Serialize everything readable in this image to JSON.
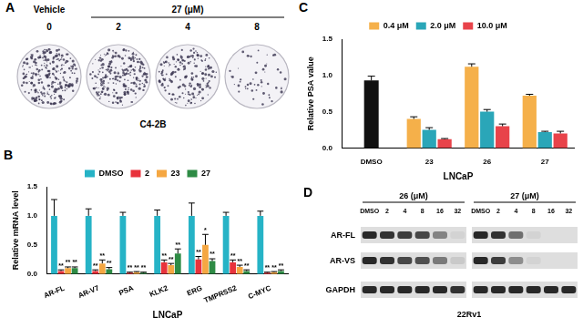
{
  "chart_data": [
    {
      "type": "bar",
      "panel": "B",
      "x_label": "LNCaP",
      "y_label": "Relative mRNA level",
      "categories": [
        "AR-FL",
        "AR-V7",
        "PSA",
        "KLK2",
        "ERG",
        "TMPRSS2",
        "C-MYC"
      ],
      "series": [
        {
          "name": "DMSO",
          "color": "#26b3c6",
          "values": [
            1.0,
            1.0,
            1.0,
            1.0,
            1.0,
            1.0,
            1.0
          ],
          "errors": [
            0.28,
            0.12,
            0.06,
            0.1,
            0.22,
            0.06,
            0.08
          ]
        },
        {
          "name": "2",
          "color": "#e8333c",
          "values": [
            0.05,
            0.05,
            0.02,
            0.2,
            0.25,
            0.2,
            0.02
          ],
          "errors": [
            0.02,
            0.02,
            0.01,
            0.04,
            0.05,
            0.04,
            0.01
          ],
          "stars": [
            "**",
            "**",
            "**",
            "**",
            "**",
            "**",
            "**"
          ]
        },
        {
          "name": "23",
          "color": "#f5a742",
          "values": [
            0.1,
            0.18,
            0.03,
            0.15,
            0.5,
            0.12,
            0.03
          ],
          "errors": [
            0.02,
            0.06,
            0.01,
            0.03,
            0.18,
            0.03,
            0.01
          ],
          "stars": [
            "**",
            "**",
            "**",
            "**",
            "*",
            "**",
            "**"
          ]
        },
        {
          "name": "27",
          "color": "#2e8b45",
          "values": [
            0.1,
            0.08,
            0.02,
            0.35,
            0.22,
            0.05,
            0.05
          ],
          "errors": [
            0.02,
            0.03,
            0.01,
            0.08,
            0.04,
            0.02,
            0.02
          ],
          "stars": [
            "**",
            "**",
            "**",
            "**",
            "**",
            "**",
            "**"
          ]
        }
      ],
      "ylim": [
        0,
        1.5
      ],
      "yticks": [
        {
          "value": 0,
          "label": "0.0"
        },
        0.5,
        {
          "value": 1,
          "label": "1.0"
        },
        1.5
      ],
      "grid": false,
      "legend": "top"
    },
    {
      "type": "bar",
      "panel": "C",
      "x_label": "LNCaP",
      "y_label": "Relative PSA value",
      "categories": [
        "DMSO",
        "23",
        "26",
        "27"
      ],
      "series": [
        {
          "name": "DMSO",
          "color": "#111111",
          "values": [
            0.93,
            null,
            null,
            null
          ],
          "errors": [
            0.06,
            null,
            null,
            null
          ]
        },
        {
          "name": "0.4 μM",
          "color": "#f5b04a",
          "values": [
            null,
            0.4,
            1.12,
            0.72
          ],
          "errors": [
            null,
            0.03,
            0.04,
            0.02
          ]
        },
        {
          "name": "2.0 μM",
          "color": "#2aa6b8",
          "values": [
            null,
            0.25,
            0.5,
            0.22
          ],
          "errors": [
            null,
            0.03,
            0.03,
            0.01
          ]
        },
        {
          "name": "10.0 μM",
          "color": "#e8434a",
          "values": [
            null,
            0.12,
            0.3,
            0.2
          ],
          "errors": [
            null,
            0.01,
            0.03,
            0.03
          ]
        }
      ],
      "ylim": [
        0,
        1.5
      ],
      "yticks": [
        {
          "value": 0,
          "label": "0.0"
        },
        0.5,
        {
          "value": 1,
          "label": "1.0"
        },
        1.5
      ],
      "grid": false,
      "legend": "top"
    }
  ],
  "panel_a": {
    "panel": "A",
    "cell_line": "C4-2B",
    "groups": [
      {
        "title": "Vehicle",
        "wells": [
          "0"
        ]
      },
      {
        "title": "27 (μM)",
        "wells": [
          "2",
          "4",
          "8"
        ]
      }
    ],
    "colonies": [
      260,
      230,
      180,
      50
    ]
  },
  "panel_d": {
    "panel": "D",
    "cell_line": "22Rv1",
    "rows": [
      "AR-FL",
      "AR-VS",
      "GAPDH"
    ],
    "groups": [
      {
        "title": "26 (μM)",
        "lanes": [
          "DMSO",
          "2",
          "4",
          "8",
          "16",
          "32"
        ],
        "intensity": [
          [
            0.9,
            0.85,
            0.8,
            0.75,
            0.45,
            0.05
          ],
          [
            0.9,
            0.85,
            0.75,
            0.7,
            0.5,
            0.1
          ],
          [
            0.9,
            0.9,
            0.9,
            0.9,
            0.9,
            0.85
          ]
        ]
      },
      {
        "title": "27 (μM)",
        "lanes": [
          "DMSO",
          "2",
          "4",
          "8",
          "16",
          "32"
        ],
        "intensity": [
          [
            0.9,
            0.85,
            0.55,
            0.05,
            0,
            0
          ],
          [
            0.9,
            0.8,
            0.4,
            0.05,
            0,
            0
          ],
          [
            0.9,
            0.9,
            0.9,
            0.9,
            0.9,
            0.9
          ]
        ]
      }
    ]
  }
}
